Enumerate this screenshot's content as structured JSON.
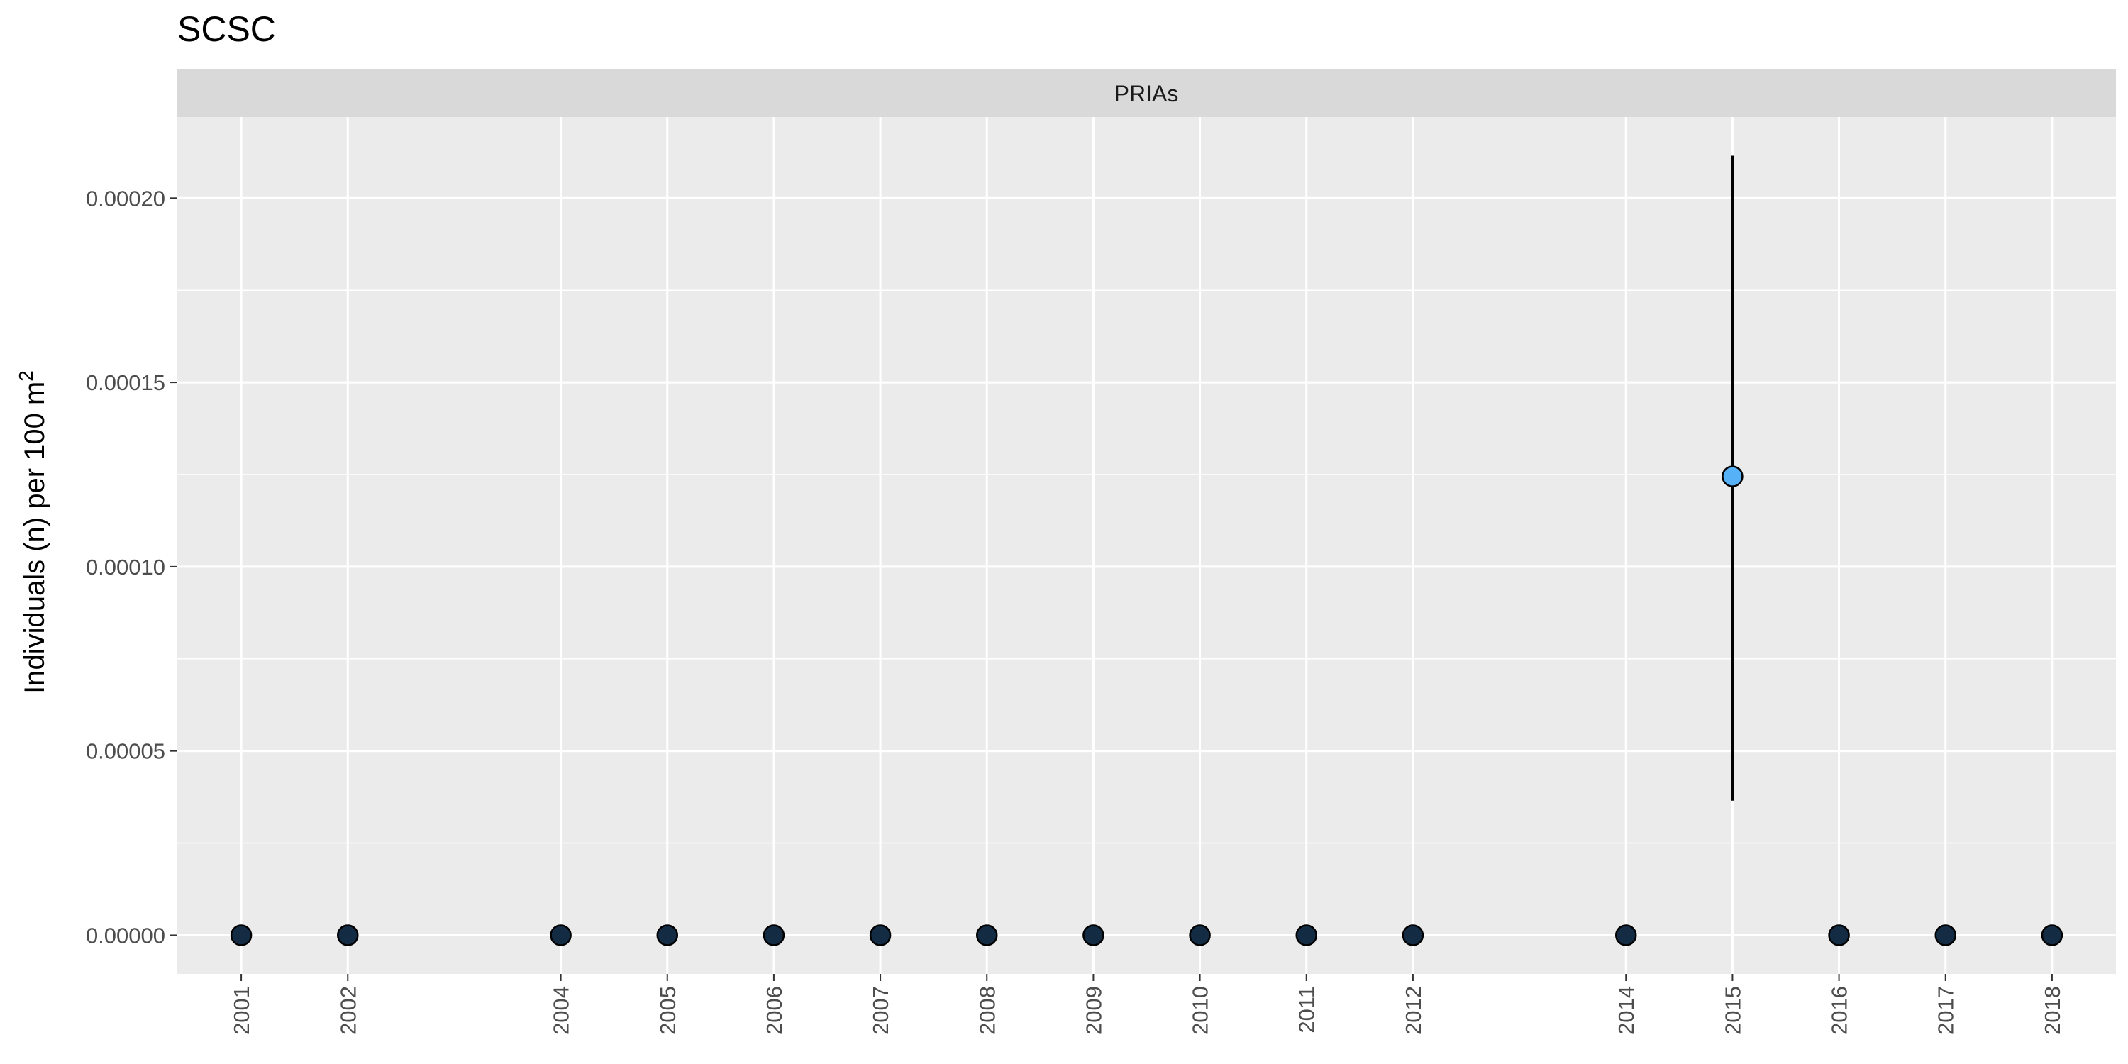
{
  "chart_data": {
    "type": "scatter",
    "title": "SCSC",
    "facet": "PRIAs",
    "xlabel": "",
    "ylabel": "Individuals (n) per 100 m",
    "ylabel_superscript": "2",
    "ylim": [
      -1.05e-05,
      0.000222
    ],
    "y_ticks": [
      "0.00000",
      "0.00005",
      "0.00010",
      "0.00015",
      "0.00020"
    ],
    "y_tick_values": [
      0,
      5e-05,
      0.0001,
      0.00015,
      0.0002
    ],
    "x_ticks": [
      "2001",
      "2002",
      "2004",
      "2005",
      "2006",
      "2007",
      "2008",
      "2009",
      "2010",
      "2011",
      "2012",
      "2014",
      "2015",
      "2016",
      "2017",
      "2018"
    ],
    "grid": true,
    "points": [
      {
        "x": 2001,
        "y": 0
      },
      {
        "x": 2002,
        "y": 0
      },
      {
        "x": 2004,
        "y": 0
      },
      {
        "x": 2005,
        "y": 0
      },
      {
        "x": 2006,
        "y": 0
      },
      {
        "x": 2007,
        "y": 0
      },
      {
        "x": 2008,
        "y": 0
      },
      {
        "x": 2009,
        "y": 0
      },
      {
        "x": 2010,
        "y": 0
      },
      {
        "x": 2011,
        "y": 0
      },
      {
        "x": 2012,
        "y": 0
      },
      {
        "x": 2014,
        "y": 0
      },
      {
        "x": 2015,
        "y": 0.0001245,
        "ymin": 3.65e-05,
        "ymax": 0.0002115
      },
      {
        "x": 2016,
        "y": 0
      },
      {
        "x": 2017,
        "y": 0
      },
      {
        "x": 2018,
        "y": 0
      }
    ],
    "colors": {
      "zero_point": "#132B43",
      "nonzero_point": "#56B1F7",
      "point_outline": "#000000",
      "errorbar": "#000000",
      "panel_background": "#EBEBEB",
      "strip_background": "#D9D9D9",
      "grid": "#FFFFFF"
    }
  }
}
